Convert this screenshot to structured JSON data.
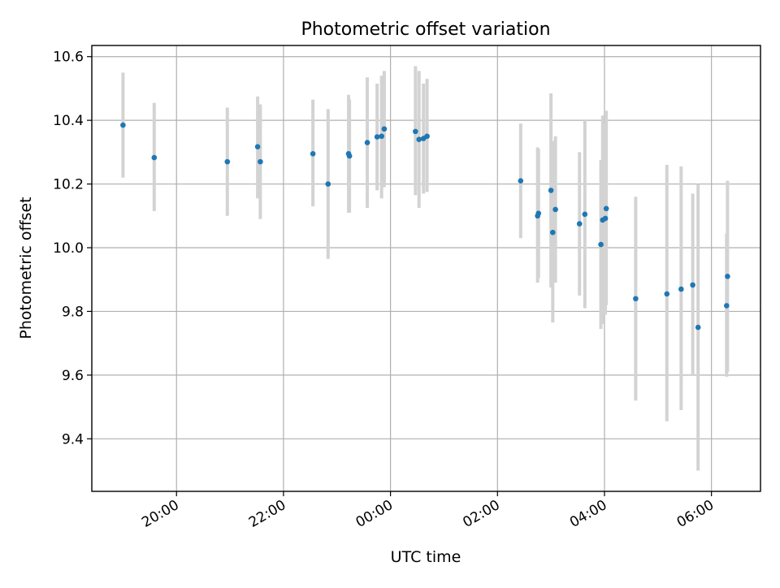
{
  "chart_data": {
    "type": "scatter",
    "title": "Photometric offset variation",
    "xlabel": "UTC time",
    "ylabel": "Photometric offset",
    "x_axis_kind": "time",
    "xlim": [
      "18:25",
      "06:55"
    ],
    "ylim": [
      9.235,
      10.635
    ],
    "grid": true,
    "x_ticks": [
      "20:00",
      "22:00",
      "00:00",
      "02:00",
      "04:00",
      "06:00"
    ],
    "y_ticks": [
      9.4,
      9.6,
      9.8,
      10.0,
      10.2,
      10.4,
      10.6
    ],
    "y_tick_labels": [
      "9.4",
      "9.6",
      "9.8",
      "10.0",
      "10.2",
      "10.4",
      "10.6"
    ],
    "colors": {
      "point": "#1f77b4",
      "errorbar": "#d3d3d3",
      "grid": "#b0b0b0"
    },
    "series": [
      {
        "points": [
          {
            "x": "19:00",
            "y": 10.385,
            "err_low": 10.22,
            "err_high": 10.55
          },
          {
            "x": "19:35",
            "y": 10.283,
            "err_low": 10.115,
            "err_high": 10.455
          },
          {
            "x": "20:57",
            "y": 10.27,
            "err_low": 10.1,
            "err_high": 10.44
          },
          {
            "x": "21:31",
            "y": 10.317,
            "err_low": 10.155,
            "err_high": 10.475
          },
          {
            "x": "21:34",
            "y": 10.27,
            "err_low": 10.09,
            "err_high": 10.45
          },
          {
            "x": "22:33",
            "y": 10.295,
            "err_low": 10.13,
            "err_high": 10.465
          },
          {
            "x": "22:50",
            "y": 10.2,
            "err_low": 9.965,
            "err_high": 10.435
          },
          {
            "x": "23:13",
            "y": 10.295,
            "err_low": 10.11,
            "err_high": 10.48
          },
          {
            "x": "23:14",
            "y": 10.288,
            "err_low": 10.11,
            "err_high": 10.465
          },
          {
            "x": "23:34",
            "y": 10.33,
            "err_low": 10.125,
            "err_high": 10.535
          },
          {
            "x": "23:45",
            "y": 10.348,
            "err_low": 10.18,
            "err_high": 10.515
          },
          {
            "x": "23:50",
            "y": 10.35,
            "err_low": 10.155,
            "err_high": 10.54
          },
          {
            "x": "23:53",
            "y": 10.373,
            "err_low": 10.19,
            "err_high": 10.555
          },
          {
            "x": "00:28",
            "y": 10.365,
            "err_low": 10.165,
            "err_high": 10.57
          },
          {
            "x": "00:32",
            "y": 10.34,
            "err_low": 10.125,
            "err_high": 10.555
          },
          {
            "x": "00:37",
            "y": 10.343,
            "err_low": 10.17,
            "err_high": 10.515
          },
          {
            "x": "00:41",
            "y": 10.35,
            "err_low": 10.175,
            "err_high": 10.53
          },
          {
            "x": "02:26",
            "y": 10.21,
            "err_low": 10.03,
            "err_high": 10.39
          },
          {
            "x": "02:45",
            "y": 10.1,
            "err_low": 9.89,
            "err_high": 10.315
          },
          {
            "x": "02:46",
            "y": 10.108,
            "err_low": 9.905,
            "err_high": 10.31
          },
          {
            "x": "03:00",
            "y": 10.18,
            "err_low": 9.875,
            "err_high": 10.485
          },
          {
            "x": "03:02",
            "y": 10.048,
            "err_low": 9.765,
            "err_high": 10.335
          },
          {
            "x": "03:05",
            "y": 10.12,
            "err_low": 9.89,
            "err_high": 10.35
          },
          {
            "x": "03:32",
            "y": 10.075,
            "err_low": 9.85,
            "err_high": 10.3
          },
          {
            "x": "03:38",
            "y": 10.105,
            "err_low": 9.81,
            "err_high": 10.4
          },
          {
            "x": "03:56",
            "y": 10.01,
            "err_low": 9.745,
            "err_high": 10.275
          },
          {
            "x": "03:58",
            "y": 10.087,
            "err_low": 9.76,
            "err_high": 10.415
          },
          {
            "x": "04:01",
            "y": 10.092,
            "err_low": 9.79,
            "err_high": 10.39
          },
          {
            "x": "04:02",
            "y": 10.123,
            "err_low": 9.82,
            "err_high": 10.43
          },
          {
            "x": "04:35",
            "y": 9.84,
            "err_low": 9.52,
            "err_high": 10.16
          },
          {
            "x": "05:10",
            "y": 9.855,
            "err_low": 9.455,
            "err_high": 10.26
          },
          {
            "x": "05:26",
            "y": 9.87,
            "err_low": 9.49,
            "err_high": 10.255
          },
          {
            "x": "05:39",
            "y": 9.883,
            "err_low": 9.6,
            "err_high": 10.17
          },
          {
            "x": "05:45",
            "y": 9.75,
            "err_low": 9.3,
            "err_high": 10.2
          },
          {
            "x": "06:17",
            "y": 9.818,
            "err_low": 9.595,
            "err_high": 10.045
          },
          {
            "x": "06:18",
            "y": 9.91,
            "err_low": 9.61,
            "err_high": 10.21
          }
        ]
      }
    ]
  }
}
